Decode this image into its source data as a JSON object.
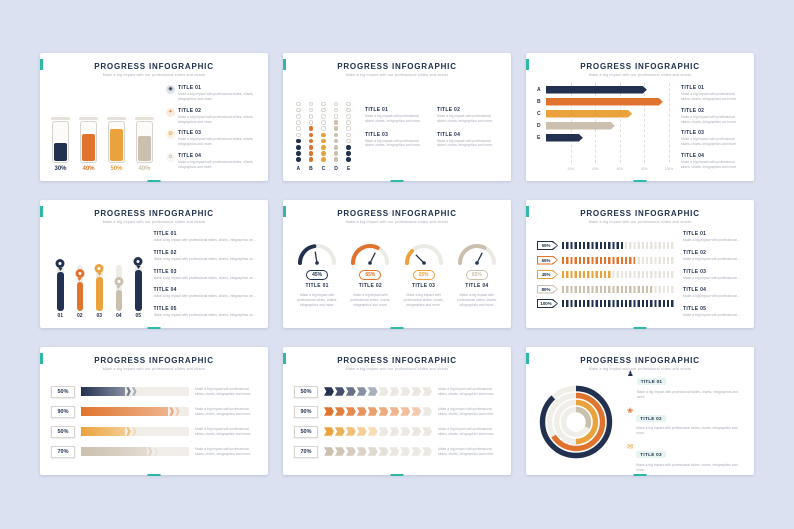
{
  "common": {
    "title": "PROGRESS INFOGRAPHIC",
    "subtitle": "Make a big impact with our professional slides and charts",
    "body": "Make a big impact with professional slides, charts, infographics and more.",
    "accent": "#2eb9a7"
  },
  "palette": {
    "navy": "#233150",
    "orange": "#e0742e",
    "amber": "#eaa23c",
    "beige": "#cbbfae",
    "track": "#f0ede8",
    "text": "#233150",
    "muted": "#a9aeb9",
    "background": "#dce1f1"
  },
  "chart_data": [
    {
      "variant": "jar-fill",
      "type": "bar",
      "bars": [
        {
          "percent": "30%",
          "fill": 45,
          "color": "navy"
        },
        {
          "percent": "40%",
          "fill": 68,
          "color": "orange"
        },
        {
          "percent": "50%",
          "fill": 80,
          "color": "amber"
        },
        {
          "percent": "40%",
          "fill": 62,
          "color": "beige"
        }
      ],
      "legend": [
        {
          "title": "TITLE 01",
          "icon": "target-icon",
          "glyph": "◉",
          "color": "navy"
        },
        {
          "title": "TITLE 02",
          "icon": "star-icon",
          "glyph": "✦",
          "color": "orange"
        },
        {
          "title": "TITLE 03",
          "icon": "sun-icon",
          "glyph": "❂",
          "color": "amber"
        },
        {
          "title": "TITLE 04",
          "icon": "flower-icon",
          "glyph": "✿",
          "color": "beige"
        }
      ]
    },
    {
      "variant": "dot-columns",
      "type": "scatter",
      "columns": [
        {
          "label": "A",
          "filled": 4,
          "total": 10,
          "color": "navy"
        },
        {
          "label": "B",
          "filled": 6,
          "total": 10,
          "color": "orange"
        },
        {
          "label": "C",
          "filled": 5,
          "total": 10,
          "color": "amber"
        },
        {
          "label": "D",
          "filled": 7,
          "total": 10,
          "color": "beige"
        },
        {
          "label": "E",
          "filled": 3,
          "total": 10,
          "color": "navy"
        }
      ],
      "legend": [
        {
          "title": "TITLE 01"
        },
        {
          "title": "TITLE 02"
        },
        {
          "title": "TITLE 03"
        },
        {
          "title": "TITLE 04"
        }
      ]
    },
    {
      "variant": "arrow-bars",
      "type": "bar",
      "rows": [
        {
          "label": "A",
          "value": 82,
          "color": "navy"
        },
        {
          "label": "B",
          "value": 95,
          "color": "orange"
        },
        {
          "label": "C",
          "value": 70,
          "color": "amber"
        },
        {
          "label": "D",
          "value": 56,
          "color": "beige"
        },
        {
          "label": "E",
          "value": 30,
          "color": "navy"
        }
      ],
      "axis": [
        "20%",
        "40%",
        "60%",
        "80%",
        "100%"
      ],
      "legend": [
        {
          "title": "TITLE 01"
        },
        {
          "title": "TITLE 02"
        },
        {
          "title": "TITLE 03"
        },
        {
          "title": "TITLE 04"
        }
      ]
    },
    {
      "variant": "pin-columns",
      "type": "bar",
      "bars": [
        {
          "label": "01",
          "value": 85,
          "color": "navy"
        },
        {
          "label": "02",
          "value": 62,
          "color": "orange"
        },
        {
          "label": "03",
          "value": 74,
          "color": "amber"
        },
        {
          "label": "04",
          "value": 46,
          "color": "beige"
        },
        {
          "label": "05",
          "value": 90,
          "color": "navy"
        }
      ],
      "legend": [
        {
          "title": "TITLE 01"
        },
        {
          "title": "TITLE 02"
        },
        {
          "title": "TITLE 03"
        },
        {
          "title": "TITLE 04"
        },
        {
          "title": "TITLE 05"
        }
      ]
    },
    {
      "variant": "gauges",
      "type": "pie",
      "gauges": [
        {
          "percent": "45%",
          "value": 45,
          "color": "navy",
          "title": "TITLE 01"
        },
        {
          "percent": "65%",
          "value": 65,
          "color": "orange",
          "title": "TITLE 02"
        },
        {
          "percent": "25%",
          "value": 25,
          "color": "amber",
          "title": "TITLE 03"
        },
        {
          "percent": "65%",
          "value": 65,
          "color": "beige",
          "title": "TITLE 04"
        }
      ]
    },
    {
      "variant": "striped-bars",
      "type": "bar",
      "rows": [
        {
          "percent": "55%",
          "value": 55,
          "color": "navy"
        },
        {
          "percent": "65%",
          "value": 65,
          "color": "orange"
        },
        {
          "percent": "45%",
          "value": 45,
          "color": "amber"
        },
        {
          "percent": "80%",
          "value": 80,
          "color": "beige"
        },
        {
          "percent": "100%",
          "value": 100,
          "color": "navy"
        }
      ],
      "legend": [
        {
          "title": "TITLE 01"
        },
        {
          "title": "TITLE 02"
        },
        {
          "title": "TITLE 03"
        },
        {
          "title": "TITLE 04"
        },
        {
          "title": "TITLE 05"
        }
      ]
    },
    {
      "variant": "gradient-arrow-bars",
      "type": "bar",
      "rows": [
        {
          "percent": "50%",
          "value": 50,
          "color": "navy"
        },
        {
          "percent": "90%",
          "value": 90,
          "color": "orange"
        },
        {
          "percent": "50%",
          "value": 50,
          "color": "amber"
        },
        {
          "percent": "70%",
          "value": 70,
          "color": "beige"
        }
      ]
    },
    {
      "variant": "segmented-arrow-bars",
      "type": "bar",
      "segments": 10,
      "rows": [
        {
          "percent": "50%",
          "value": 50,
          "color": "navy"
        },
        {
          "percent": "90%",
          "value": 90,
          "color": "orange"
        },
        {
          "percent": "50%",
          "value": 50,
          "color": "amber"
        },
        {
          "percent": "70%",
          "value": 70,
          "color": "beige"
        }
      ]
    },
    {
      "variant": "radial-rings",
      "type": "pie",
      "rings": [
        {
          "value": 88,
          "color": "navy"
        },
        {
          "value": 66,
          "color": "orange"
        },
        {
          "value": 50,
          "color": "amber"
        },
        {
          "value": 32,
          "color": "beige"
        }
      ],
      "legend": [
        {
          "title": "TITLE 01",
          "icon": "person-icon",
          "glyph": "♟",
          "color": "navy"
        },
        {
          "title": "TITLE 02",
          "icon": "flower-icon",
          "glyph": "❀",
          "color": "orange"
        },
        {
          "title": "TITLE 03",
          "icon": "mail-icon",
          "glyph": "✉",
          "color": "amber"
        }
      ]
    }
  ]
}
